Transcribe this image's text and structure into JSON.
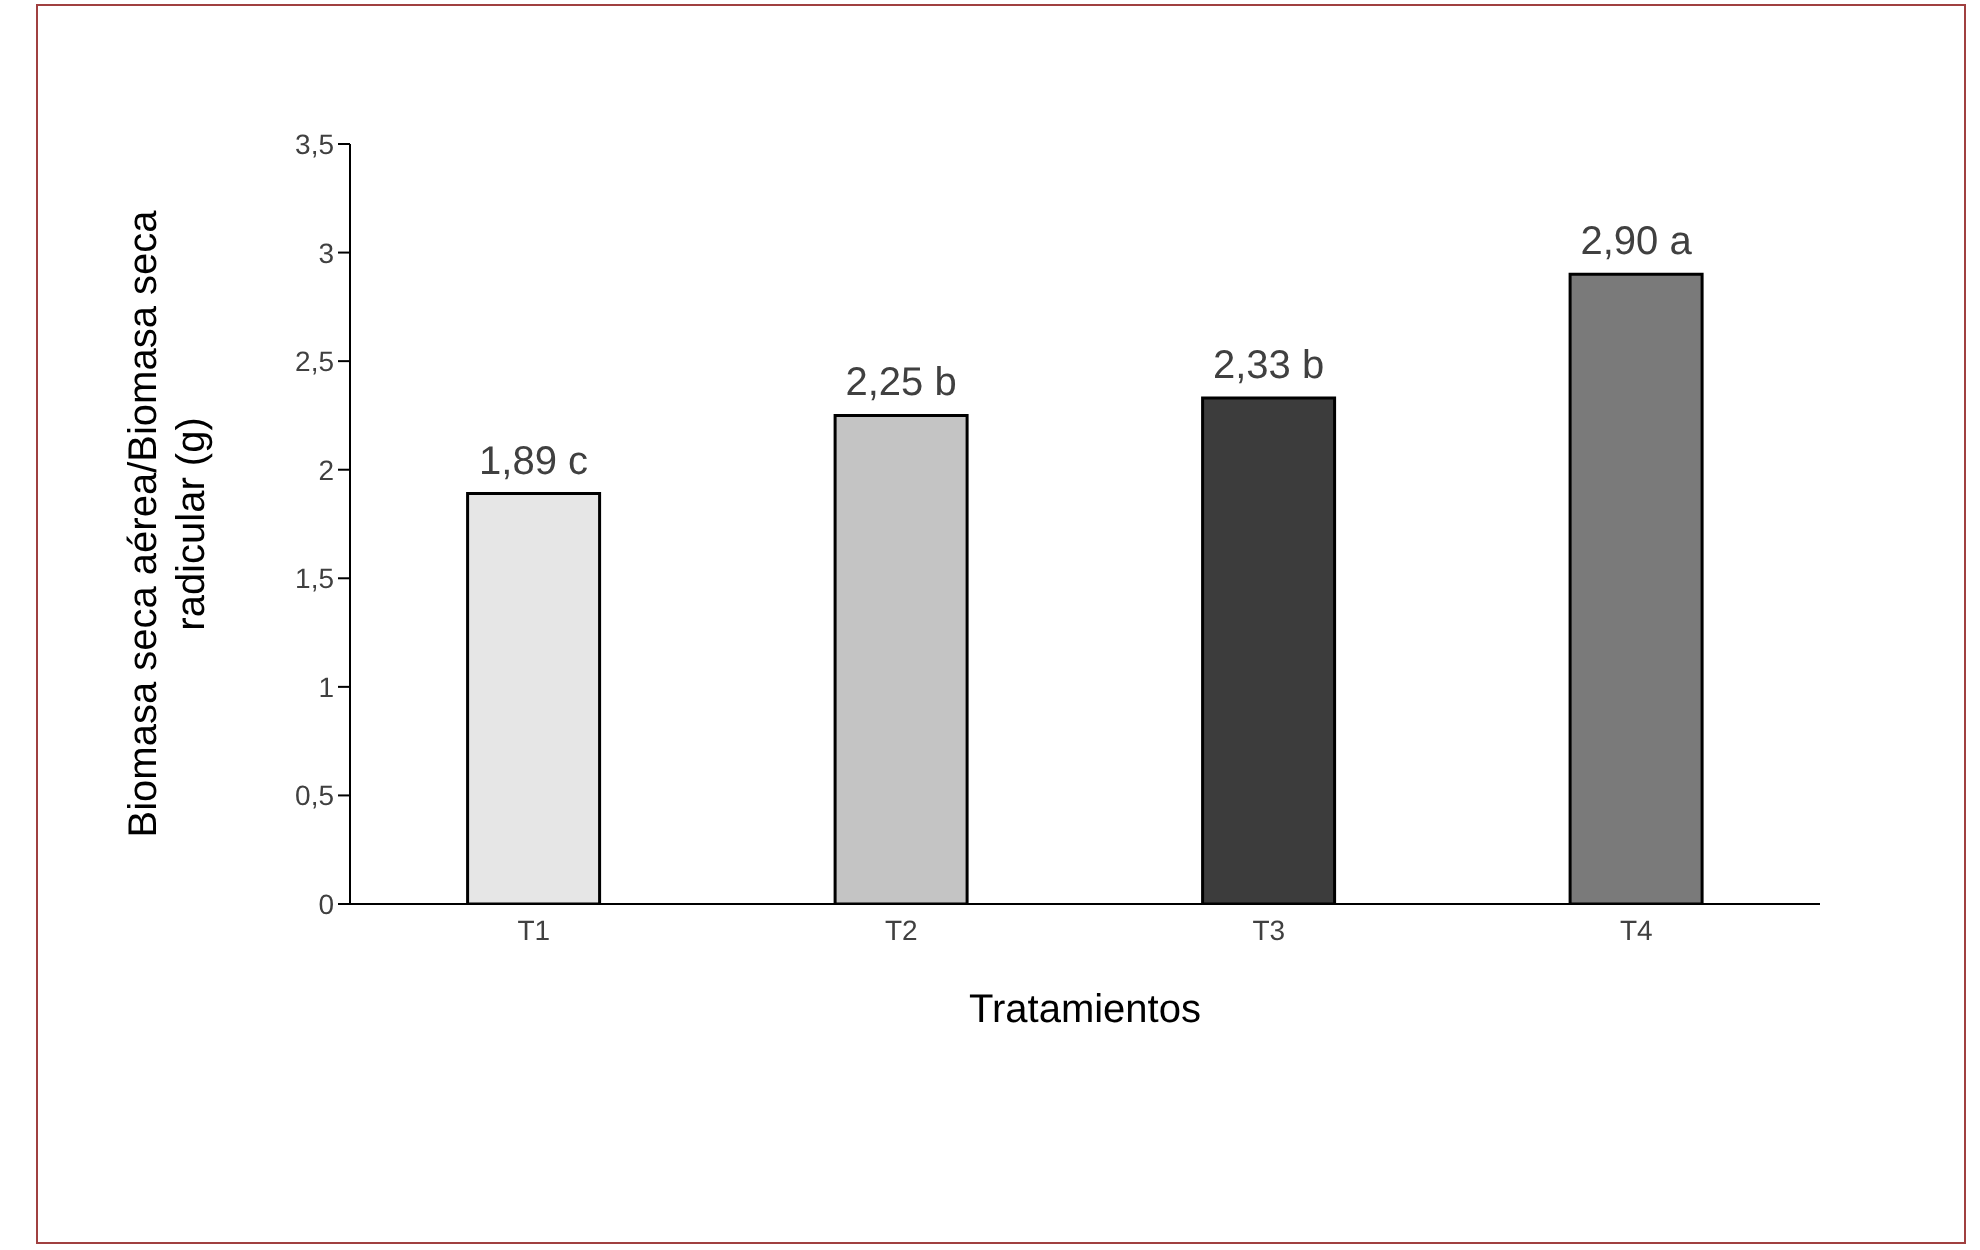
{
  "chart_data": {
    "type": "bar",
    "xlabel": "Tratamientos",
    "ylabel": "Biomasa seca aérea/Biomasa seca radicular (g)",
    "categories": [
      "T1",
      "T2",
      "T3",
      "T4"
    ],
    "values": [
      1.89,
      2.25,
      2.33,
      2.9
    ],
    "value_labels": [
      "1,89 c",
      "2,25 b",
      "2,33 b",
      "2,90 a"
    ],
    "colors": [
      "#e6e6e6",
      "#c4c4c4",
      "#3c3c3c",
      "#7a7a7a"
    ],
    "ylim": [
      0,
      3.5
    ],
    "yticks": [
      0,
      {
        "value": 0.5,
        "label": "0,5"
      },
      1,
      {
        "value": 1.5,
        "label": "1,5"
      },
      2,
      {
        "value": 2.5,
        "label": "2,5"
      },
      3,
      {
        "value": 3.5,
        "label": "3,5"
      }
    ],
    "grid": false,
    "legend": false
  }
}
